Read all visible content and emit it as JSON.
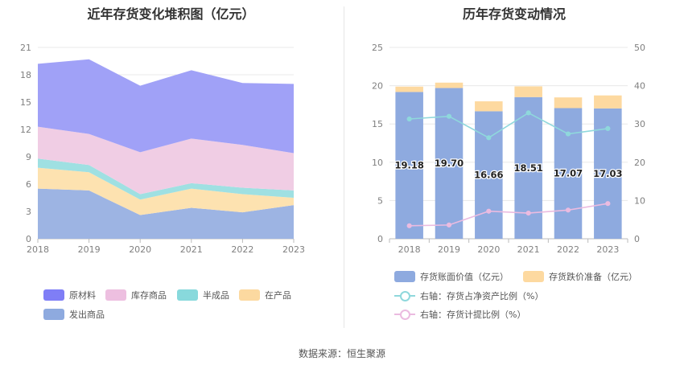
{
  "source_label": "数据来源：恒生聚源",
  "chart_data": [
    {
      "type": "area",
      "stacked": true,
      "title": "近年存货变化堆积图（亿元）",
      "x": [
        "2018",
        "2019",
        "2020",
        "2021",
        "2022",
        "2023"
      ],
      "ylim": [
        0,
        21
      ],
      "yticks": [
        "0",
        "3",
        "6",
        "9",
        "12",
        "15",
        "18",
        "21"
      ],
      "grid": true,
      "legend_position": "bottom",
      "series": [
        {
          "name": "发出商品",
          "color": "#9db4e3",
          "values": [
            5.5,
            5.3,
            2.6,
            3.4,
            2.9,
            3.7
          ]
        },
        {
          "name": "在产品",
          "color": "#fde2b0",
          "values": [
            2.3,
            2.0,
            1.7,
            2.1,
            2.0,
            0.8
          ]
        },
        {
          "name": "半成品",
          "color": "#9fe0e2",
          "values": [
            1.0,
            0.8,
            0.6,
            0.6,
            0.7,
            0.8
          ]
        },
        {
          "name": "库存商品",
          "color": "#f0cde4",
          "values": [
            3.5,
            3.4,
            4.6,
            4.9,
            4.7,
            4.1
          ]
        },
        {
          "name": "原材料",
          "color": "#a0a1f7",
          "values": [
            6.9,
            8.2,
            7.3,
            7.5,
            6.8,
            7.6
          ]
        }
      ],
      "legend_order": [
        "原材料",
        "库存商品",
        "半成品",
        "在产品",
        "发出商品"
      ],
      "legend_colors": {
        "原材料": "#7f7ef6",
        "库存商品": "#edbfe0",
        "半成品": "#88d9dc",
        "在产品": "#fcd9a0",
        "发出商品": "#8eaadf"
      }
    },
    {
      "type": "bar",
      "stacked": true,
      "title": "历年存货变动情况",
      "categories": [
        "2018",
        "2019",
        "2020",
        "2021",
        "2022",
        "2023"
      ],
      "ylim": [
        0,
        25
      ],
      "yticks": [
        "0",
        "5",
        "10",
        "15",
        "20",
        "25"
      ],
      "y2lim": [
        0,
        50
      ],
      "y2ticks": [
        "0",
        "10",
        "20",
        "30",
        "40",
        "50"
      ],
      "grid": true,
      "legend_position": "bottom",
      "series": [
        {
          "name": "存货账面价值（亿元）",
          "color": "#8eaadf",
          "values": [
            19.18,
            19.7,
            16.66,
            18.51,
            17.07,
            17.03
          ],
          "labels": [
            "19.18",
            "19.70",
            "16.66",
            "18.51",
            "17.07",
            "17.03"
          ]
        },
        {
          "name": "存货跌价准备（亿元）",
          "color": "#fdd9a0",
          "values": [
            0.7,
            0.7,
            1.3,
            1.4,
            1.4,
            1.7
          ]
        }
      ],
      "lines": [
        {
          "name": "右轴：存货占净资产比例（%）",
          "color": "#8fd8dc",
          "axis": "right",
          "values": [
            31.3,
            32.0,
            26.4,
            32.9,
            27.4,
            28.8
          ]
        },
        {
          "name": "右轴：存货计提比例（%）",
          "color": "#ebbbe0",
          "axis": "right",
          "values": [
            3.4,
            3.6,
            7.2,
            6.7,
            7.5,
            9.2
          ]
        }
      ]
    }
  ]
}
